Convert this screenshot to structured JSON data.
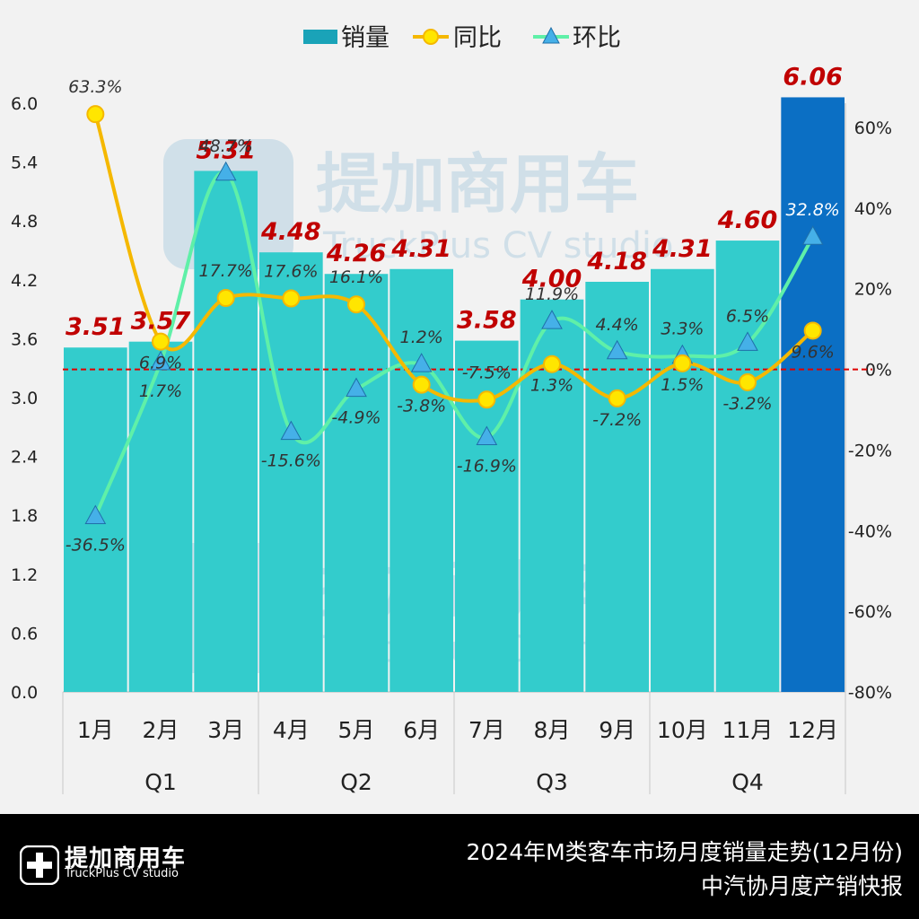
{
  "legend": {
    "sales": "销量",
    "yoy": "同比",
    "mom": "环比"
  },
  "watermark": {
    "brand": "提加商用车",
    "sub": "TruckPlus CV studio"
  },
  "footer": {
    "brand": "提加商用车",
    "brand_sub": "TruckPlus CV studio",
    "title": "2024年M类客车市场月度销量走势(12月份)",
    "subtitle": "中汽协月度产销快报"
  },
  "chart_data": {
    "type": "bar",
    "title": "2024年M类客车市场月度销量走势(12月份)",
    "categories": [
      "1月",
      "2月",
      "3月",
      "4月",
      "5月",
      "6月",
      "7月",
      "8月",
      "9月",
      "10月",
      "11月",
      "12月"
    ],
    "quarters": [
      "Q1",
      "Q2",
      "Q3",
      "Q4"
    ],
    "series": [
      {
        "name": "销量",
        "type": "bar",
        "axis": "left",
        "values": [
          3.51,
          3.57,
          5.31,
          4.48,
          4.26,
          4.31,
          3.58,
          4.0,
          4.18,
          4.31,
          4.6,
          6.06
        ],
        "labels": [
          "3.51",
          "3.57",
          "5.31",
          "4.48",
          "4.26",
          "4.31",
          "3.58",
          "4.00",
          "4.18",
          "4.31",
          "4.60",
          "6.06"
        ]
      },
      {
        "name": "同比",
        "type": "line",
        "axis": "right",
        "values": [
          63.3,
          6.9,
          17.7,
          17.6,
          16.1,
          -3.8,
          -7.5,
          1.3,
          -7.2,
          1.5,
          -3.2,
          9.6
        ],
        "labels": [
          "63.3%",
          "6.9%",
          "17.7%",
          "17.6%",
          "16.1%",
          "-3.8%",
          "-7.5%",
          "1.3%",
          "-7.2%",
          "1.5%",
          "-3.2%",
          "9.6%"
        ]
      },
      {
        "name": "环比",
        "type": "line",
        "axis": "right",
        "values": [
          -36.5,
          1.7,
          48.7,
          -15.6,
          -4.9,
          1.2,
          -16.9,
          11.9,
          4.4,
          3.3,
          6.5,
          32.8
        ],
        "labels": [
          "-36.5%",
          "1.7%",
          "48.7%",
          "-15.6%",
          "-4.9%",
          "1.2%",
          "-16.9%",
          "11.9%",
          "4.4%",
          "3.3%",
          "6.5%",
          "32.8%"
        ]
      }
    ],
    "y_left": {
      "min": 0,
      "max": 6.0,
      "ticks": [
        "0.0",
        "0.6",
        "1.2",
        "1.8",
        "2.4",
        "3.0",
        "3.6",
        "4.2",
        "4.8",
        "5.4",
        "6.0"
      ]
    },
    "y_right": {
      "min": -80,
      "max": 60,
      "ticks": [
        "-80%",
        "-60%",
        "-40%",
        "-20%",
        "0%",
        "20%",
        "40%",
        "60%"
      ]
    },
    "reference_line": 0,
    "colors": {
      "bar": "#33cccc",
      "bar_highlight": "#0b6fc4",
      "yoy": "#f5b800",
      "yoy_fill": "#ffe600",
      "mom": "#5ff0a8",
      "mom_marker": "#45b0e8",
      "value_label": "#c00000",
      "ref_line": "#e00000"
    }
  }
}
